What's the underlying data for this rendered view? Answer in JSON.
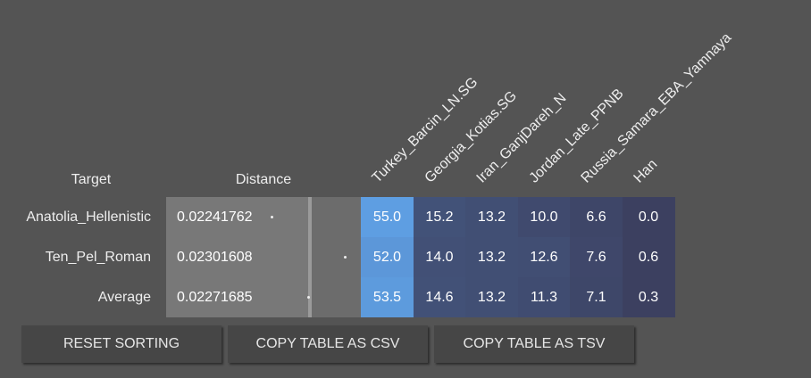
{
  "table": {
    "header": {
      "target": "Target",
      "distance": "Distance",
      "populations": [
        "Turkey_Barcin_LN.SG",
        "Georgia_Kotias.SG",
        "Iran_GanjDareh_N",
        "Jordan_Late_PPNB",
        "Russia_Samara_EBA_Yamnaya",
        "Han"
      ]
    },
    "rows": [
      {
        "target": "Anatolia_Hellenistic",
        "distance": "0.02241762",
        "values": [
          "55.0",
          "15.2",
          "13.2",
          "10.0",
          "6.6",
          "0.0"
        ]
      },
      {
        "target": "Ten_Pel_Roman",
        "distance": "0.02301608",
        "values": [
          "52.0",
          "14.0",
          "13.2",
          "12.6",
          "7.6",
          "0.6"
        ]
      },
      {
        "target": "Average",
        "distance": "0.02271685",
        "values": [
          "53.5",
          "14.6",
          "13.2",
          "11.3",
          "7.1",
          "0.3"
        ]
      }
    ]
  },
  "buttons": [
    "RESET SORTING",
    "COPY TABLE AS CSV",
    "COPY TABLE AS TSV"
  ]
}
